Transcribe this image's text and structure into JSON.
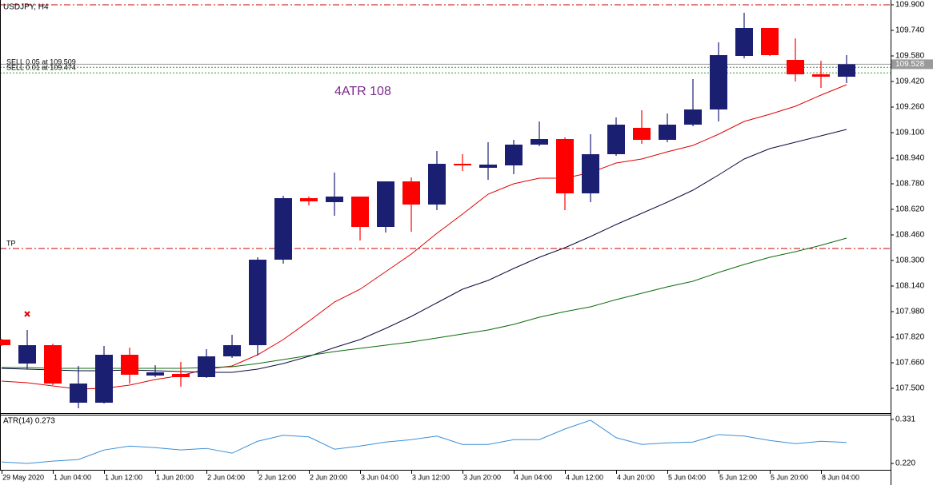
{
  "chart_data": [
    {
      "type": "candlestick",
      "title": "USDJPY, H4",
      "categories": [
        "29 May 2020",
        null,
        "1 Jun 04:00",
        null,
        "1 Jun 12:00",
        null,
        "1 Jun 20:00",
        null,
        "2 Jun 04:00",
        null,
        "2 Jun 12:00",
        null,
        "2 Jun 20:00",
        null,
        "3 Jun 04:00",
        null,
        "3 Jun 12:00",
        null,
        "3 Jun 20:00",
        null,
        "4 Jun 04:00",
        null,
        "4 Jun 12:00",
        null,
        "4 Jun 20:00",
        null,
        "5 Jun 04:00",
        null,
        "5 Jun 12:00",
        null,
        "5 Jun 20:00",
        null,
        "8 Jun 04:00",
        null
      ],
      "open": [
        107.805,
        107.655,
        107.77,
        107.41,
        107.41,
        107.71,
        107.58,
        107.59,
        107.57,
        107.7,
        107.77,
        108.305,
        108.69,
        108.665,
        108.7,
        108.51,
        108.795,
        108.65,
        108.905,
        108.88,
        108.895,
        109.025,
        109.06,
        108.72,
        108.965,
        109.13,
        109.055,
        109.15,
        109.245,
        109.58,
        109.755,
        109.555,
        109.465,
        109.45
      ],
      "high": [
        107.81,
        107.865,
        107.78,
        107.64,
        107.765,
        107.755,
        107.645,
        107.665,
        107.745,
        107.835,
        108.32,
        108.705,
        108.7,
        108.85,
        108.7,
        108.795,
        108.82,
        108.985,
        108.965,
        109.04,
        109.055,
        109.17,
        109.07,
        109.09,
        109.195,
        109.24,
        109.22,
        109.435,
        109.665,
        109.85,
        109.755,
        109.69,
        109.55,
        109.585
      ],
      "low": [
        107.765,
        107.62,
        107.52,
        107.375,
        107.405,
        107.53,
        107.57,
        107.51,
        107.565,
        107.69,
        107.705,
        108.28,
        108.645,
        108.58,
        108.425,
        108.475,
        108.48,
        108.615,
        108.86,
        108.805,
        108.84,
        109.015,
        108.615,
        108.665,
        108.955,
        109.03,
        109.04,
        109.14,
        109.17,
        109.565,
        109.58,
        109.42,
        109.38,
        109.41
      ],
      "close": [
        107.77,
        107.77,
        107.53,
        107.53,
        107.71,
        107.585,
        107.6,
        107.57,
        107.7,
        107.77,
        108.305,
        108.69,
        108.67,
        108.7,
        108.51,
        108.795,
        108.65,
        108.905,
        108.895,
        108.9,
        109.025,
        109.06,
        108.72,
        108.965,
        109.15,
        109.055,
        109.15,
        109.245,
        109.585,
        109.755,
        109.585,
        109.465,
        109.45,
        109.528
      ],
      "up_color": "#1b1f72",
      "down_color": "#ff0000",
      "lines": [
        {
          "color": "#e00000",
          "values": [
            107.545,
            107.535,
            107.515,
            107.495,
            107.5,
            107.52,
            107.555,
            107.58,
            107.62,
            107.64,
            107.71,
            107.805,
            107.92,
            108.04,
            108.12,
            108.23,
            108.34,
            108.47,
            108.59,
            108.715,
            108.78,
            108.815,
            108.815,
            108.85,
            108.91,
            108.935,
            108.98,
            109.02,
            109.09,
            109.17,
            109.215,
            109.265,
            109.335,
            109.4
          ]
        },
        {
          "color": "#0a0a3c",
          "values": [
            107.625,
            107.62,
            107.615,
            107.61,
            107.61,
            107.615,
            107.61,
            107.605,
            107.6,
            107.6,
            107.62,
            107.655,
            107.7,
            107.755,
            107.805,
            107.875,
            107.95,
            108.035,
            108.12,
            108.175,
            108.25,
            108.32,
            108.38,
            108.45,
            108.525,
            108.595,
            108.665,
            108.74,
            108.835,
            108.935,
            109.0,
            109.04,
            109.08,
            109.12
          ]
        },
        {
          "color": "#0b6b0b",
          "values": [
            107.63,
            107.63,
            107.625,
            107.625,
            107.625,
            107.625,
            107.625,
            107.625,
            107.63,
            107.635,
            107.655,
            107.68,
            107.705,
            107.73,
            107.75,
            107.77,
            107.79,
            107.815,
            107.84,
            107.865,
            107.9,
            107.945,
            107.98,
            108.01,
            108.055,
            108.095,
            108.135,
            108.17,
            108.225,
            108.275,
            108.32,
            108.355,
            108.395,
            108.44
          ]
        }
      ],
      "levels": [
        {
          "value": 109.9,
          "color": "#cc0000",
          "style": "dashdot"
        },
        {
          "value": 108.375,
          "label": "TP",
          "color": "#cc0000",
          "style": "dashdot"
        },
        {
          "value": 109.509,
          "label": "SELL 0.05 at 109.509",
          "color": "#2ca02c",
          "style": "dotted"
        },
        {
          "value": 109.474,
          "label": "SELL 0.01 at 109.474",
          "color": "#2ca02c",
          "style": "dotted"
        }
      ],
      "bid": 109.528,
      "annotations": [
        "4ATR 108"
      ],
      "ylim": [
        107.345,
        109.93
      ],
      "yticks": [
        {
          "value": 109.9,
          "label": "109.900"
        },
        {
          "value": 109.74,
          "label": "109.740"
        },
        {
          "value": 109.58,
          "label": "109.580"
        },
        {
          "value": 109.42,
          "label": "109.420"
        },
        {
          "value": 109.26,
          "label": "109.260"
        },
        {
          "value": 109.1,
          "label": "109.100"
        },
        {
          "value": 108.94,
          "label": "108.940"
        },
        {
          "value": 108.78,
          "label": "108.780"
        },
        {
          "value": 108.62,
          "label": "108.620"
        },
        {
          "value": 108.46,
          "label": "108.460"
        },
        {
          "value": 108.3,
          "label": "108.300"
        },
        {
          "value": 108.14,
          "label": "108.140"
        },
        {
          "value": 107.98,
          "label": "107.980"
        },
        {
          "value": 107.82,
          "label": "107.820"
        },
        {
          "value": 107.66,
          "label": "107.660"
        },
        {
          "value": 107.5,
          "label": "107.500"
        }
      ]
    },
    {
      "type": "line",
      "title": "ATR(14) 0.273",
      "color": "#3a8fd6",
      "values": [
        0.224,
        0.22,
        0.226,
        0.23,
        0.254,
        0.264,
        0.26,
        0.254,
        0.258,
        0.246,
        0.276,
        0.291,
        0.287,
        0.256,
        0.264,
        0.274,
        0.28,
        0.289,
        0.268,
        0.268,
        0.28,
        0.28,
        0.307,
        0.329,
        0.285,
        0.268,
        0.272,
        0.274,
        0.293,
        0.289,
        0.278,
        0.27,
        0.276,
        0.273
      ],
      "ylim": [
        0.204,
        0.343
      ],
      "yticks": [
        0.331,
        {
          "value": 0.22,
          "label": "0.220"
        }
      ]
    }
  ]
}
